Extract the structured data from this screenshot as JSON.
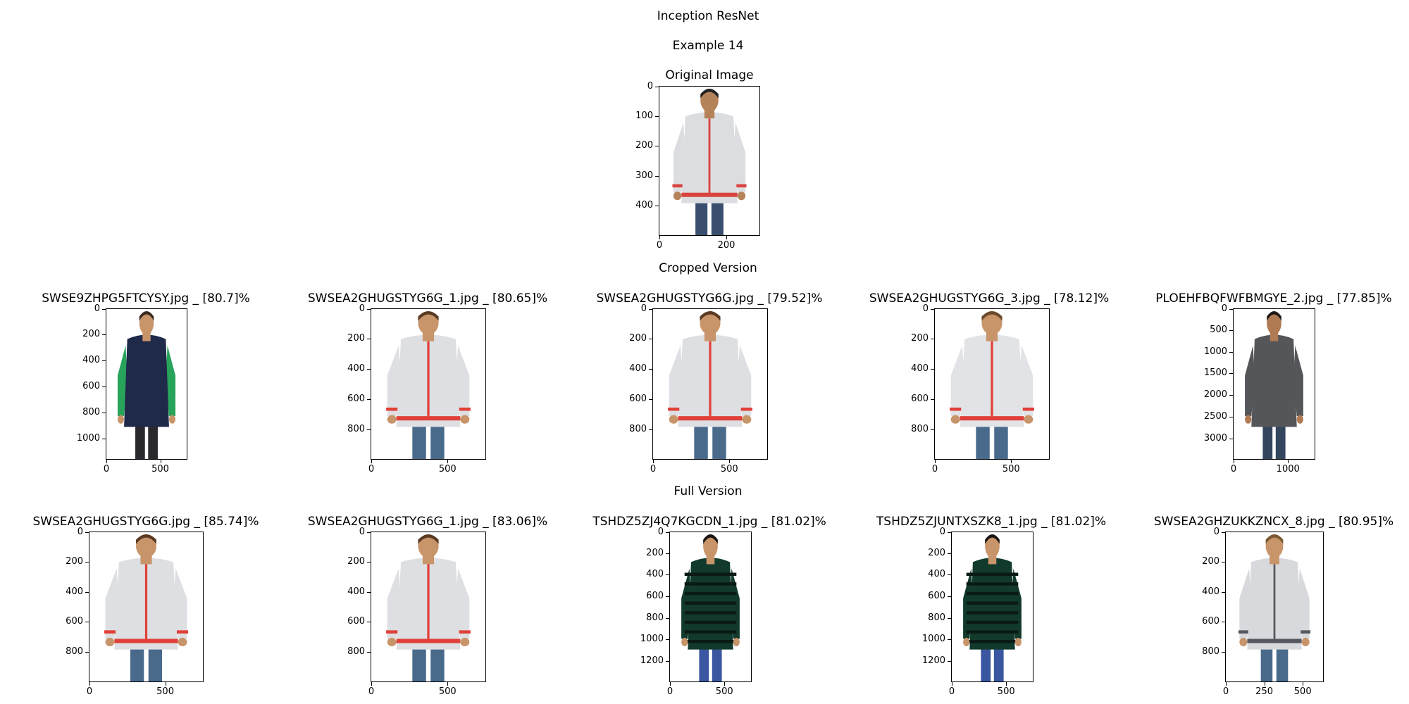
{
  "title": "Inception ResNet",
  "subtitle": "Example 14",
  "original_title": "Original Image",
  "cropped_title": "Cropped Version",
  "full_title": "Full Version",
  "original": {
    "xticks": [
      "0",
      "200"
    ],
    "yticks": [
      "0",
      "100",
      "200",
      "300",
      "400"
    ],
    "description": "man in light grey zip jacket with red trim",
    "colors": {
      "garment": "#dcdde0",
      "trim": "#d9443f",
      "pants": "#3a4f6e",
      "skin": "#b5835a",
      "hair": "#222"
    }
  },
  "cropped": [
    {
      "label": "SWSE9ZHPG5FTCYSY.jpg _ [80.7]%",
      "xticks": [
        "0",
        "500"
      ],
      "yticks": [
        "0",
        "200",
        "400",
        "600",
        "800",
        "1000"
      ],
      "colors": {
        "garment": "#1f2a4a",
        "sleeve": "#27a35a",
        "pants": "#2a2a2e",
        "skin": "#c8946a",
        "hair": "#3a2a20"
      }
    },
    {
      "label": "SWSEA2GHUGSTYG6G_1.jpg _ [80.65]%",
      "xticks": [
        "0",
        "500"
      ],
      "yticks": [
        "0",
        "200",
        "400",
        "600",
        "800"
      ],
      "colors": {
        "garment": "#dedfe2",
        "sleeve": "#dedfe2",
        "trim": "#e04038",
        "pants": "#4a6a8c",
        "skin": "#c8946a",
        "hair": "#5a3a22"
      }
    },
    {
      "label": "SWSEA2GHUGSTYG6G.jpg _ [79.52]%",
      "xticks": [
        "0",
        "500"
      ],
      "yticks": [
        "0",
        "200",
        "400",
        "600",
        "800"
      ],
      "colors": {
        "garment": "#dedfe2",
        "sleeve": "#dedfe2",
        "trim": "#e04038",
        "pants": "#4a6a8c",
        "skin": "#c8946a",
        "hair": "#5a3a22"
      }
    },
    {
      "label": "SWSEA2GHUGSTYG6G_3.jpg _ [78.12]%",
      "xticks": [
        "0",
        "500"
      ],
      "yticks": [
        "0",
        "200",
        "400",
        "600",
        "800"
      ],
      "colors": {
        "garment": "#e2e3e6",
        "sleeve": "#e2e3e6",
        "trim": "#e04038",
        "pants": "#4a6a8c",
        "skin": "#c8946a",
        "hair": "#6a4a2a"
      }
    },
    {
      "label": "PLOEHFBQFWFBMGYE_2.jpg _ [77.85]%",
      "xticks": [
        "0",
        "1000"
      ],
      "yticks": [
        "0",
        "500",
        "1000",
        "1500",
        "2000",
        "2500",
        "3000"
      ],
      "colors": {
        "garment": "#55565a",
        "sleeve": "#55565a",
        "pants": "#34465e",
        "skin": "#b07a52",
        "hair": "#1e1a18"
      }
    }
  ],
  "full": [
    {
      "label": "SWSEA2GHUGSTYG6G.jpg _ [85.74]%",
      "xticks": [
        "0",
        "500"
      ],
      "yticks": [
        "0",
        "200",
        "400",
        "600",
        "800"
      ],
      "colors": {
        "garment": "#dedfe2",
        "sleeve": "#dedfe2",
        "trim": "#e04038",
        "pants": "#4a6a8c",
        "skin": "#c8946a",
        "hair": "#5a3a22"
      }
    },
    {
      "label": "SWSEA2GHUGSTYG6G_1.jpg _ [83.06]%",
      "xticks": [
        "0",
        "500"
      ],
      "yticks": [
        "0",
        "200",
        "400",
        "600",
        "800"
      ],
      "colors": {
        "garment": "#dedfe2",
        "sleeve": "#dedfe2",
        "trim": "#e04038",
        "pants": "#4a6a8c",
        "skin": "#c8946a",
        "hair": "#5a3a22"
      }
    },
    {
      "label": "TSHDZ5ZJ4Q7KGCDN_1.jpg _ [81.02]%",
      "xticks": [
        "0",
        "500"
      ],
      "yticks": [
        "0",
        "200",
        "400",
        "600",
        "800",
        "1000",
        "1200"
      ],
      "colors": {
        "garment": "#123a2c",
        "sleeve": "#123a2c",
        "stripe": "#0a1a14",
        "pants": "#3a56a0",
        "skin": "#c8946a",
        "hair": "#1a1412"
      }
    },
    {
      "label": "TSHDZ5ZJUNTXSZK8_1.jpg _ [81.02]%",
      "xticks": [
        "0",
        "500"
      ],
      "yticks": [
        "0",
        "200",
        "400",
        "600",
        "800",
        "1000",
        "1200"
      ],
      "colors": {
        "garment": "#123a2c",
        "sleeve": "#123a2c",
        "stripe": "#0a1a14",
        "pants": "#3a56a0",
        "skin": "#c8946a",
        "hair": "#1a1412"
      }
    },
    {
      "label": "SWSEA2GHZUKKZNCX_8.jpg _ [80.95]%",
      "xticks": [
        "0",
        "250",
        "500"
      ],
      "yticks": [
        "0",
        "200",
        "400",
        "600",
        "800"
      ],
      "colors": {
        "garment": "#d8d9dc",
        "sleeve": "#d8d9dc",
        "trim": "#55585e",
        "pants": "#4a6a8c",
        "skin": "#c8946a",
        "hair": "#7a5a34"
      }
    }
  ]
}
